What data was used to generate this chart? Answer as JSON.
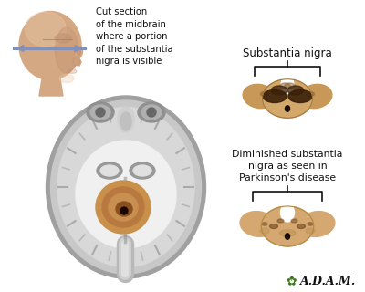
{
  "bg_color": "#ffffff",
  "label_cut_section": "Cut section\nof the midbrain\nwhere a portion\nof the substantia\nnigra is visible",
  "label_substantia_nigra": "Substantia nigra",
  "label_diminished": "Diminished substantia\nnigra as seen in\nParkinson's disease",
  "adam_text": "A.D.A.M.",
  "skin_color": "#d4a882",
  "skin_shadow": "#c09070",
  "skin_light": "#e8c8a8",
  "bracket_color": "#111111",
  "text_color": "#111111",
  "adam_green": "#3a7a18",
  "midbrain_base": "#d4a86a",
  "midbrain_wing": "#c89858",
  "midbrain_dark1": "#3a2008",
  "midbrain_dark2": "#4a2c10",
  "midbrain_brown": "#8a6030",
  "midbrain_hole": "#1a0c04",
  "midbrain_pk_base": "#d4a870",
  "midbrain_pk_spot": "#6a4018",
  "brain_bg": "#c8c8c8",
  "brain_inner": "#e8e8e8",
  "brain_white": "#f4f4f4",
  "brain_dark": "#888888",
  "brain_mid_orange": "#c8904a",
  "brain_mid_dark": "#8a5020"
}
